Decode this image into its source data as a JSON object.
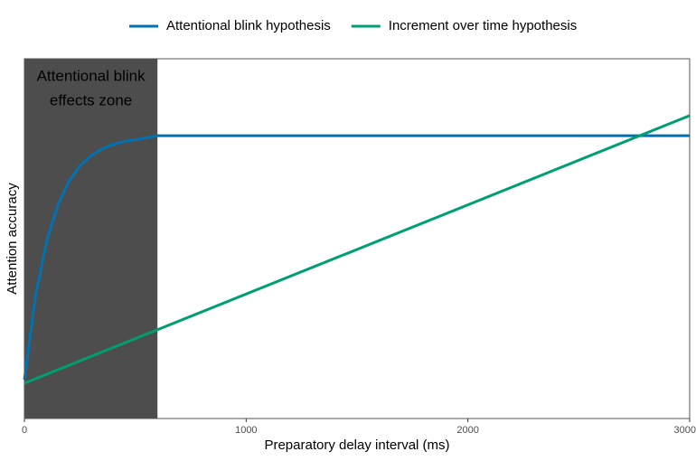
{
  "chart_data": {
    "type": "line",
    "xlabel": "Preparatory delay interval (ms)",
    "ylabel": "Attention accuracy",
    "xlim": [
      0,
      3000
    ],
    "ylim": [
      0,
      1
    ],
    "xticks": [
      0,
      1000,
      2000,
      3000
    ],
    "shaded_region": {
      "x": [
        0,
        600
      ],
      "color": "#4d4d4d",
      "label": [
        "Attentional blink",
        "effects zone"
      ]
    },
    "legend": "top",
    "series": [
      {
        "name": "Attentional blink hypothesis",
        "color": "#0072b2",
        "x": [
          0,
          50,
          100,
          150,
          200,
          250,
          300,
          350,
          400,
          450,
          500,
          600,
          3000
        ],
        "values": [
          0.108,
          0.339,
          0.491,
          0.592,
          0.658,
          0.702,
          0.73,
          0.749,
          0.762,
          0.77,
          0.775,
          0.786,
          0.786
        ]
      },
      {
        "name": "Increment over time hypothesis",
        "color": "#009e73",
        "x": [
          0,
          3000
        ],
        "values": [
          0.098,
          0.842
        ]
      }
    ]
  }
}
